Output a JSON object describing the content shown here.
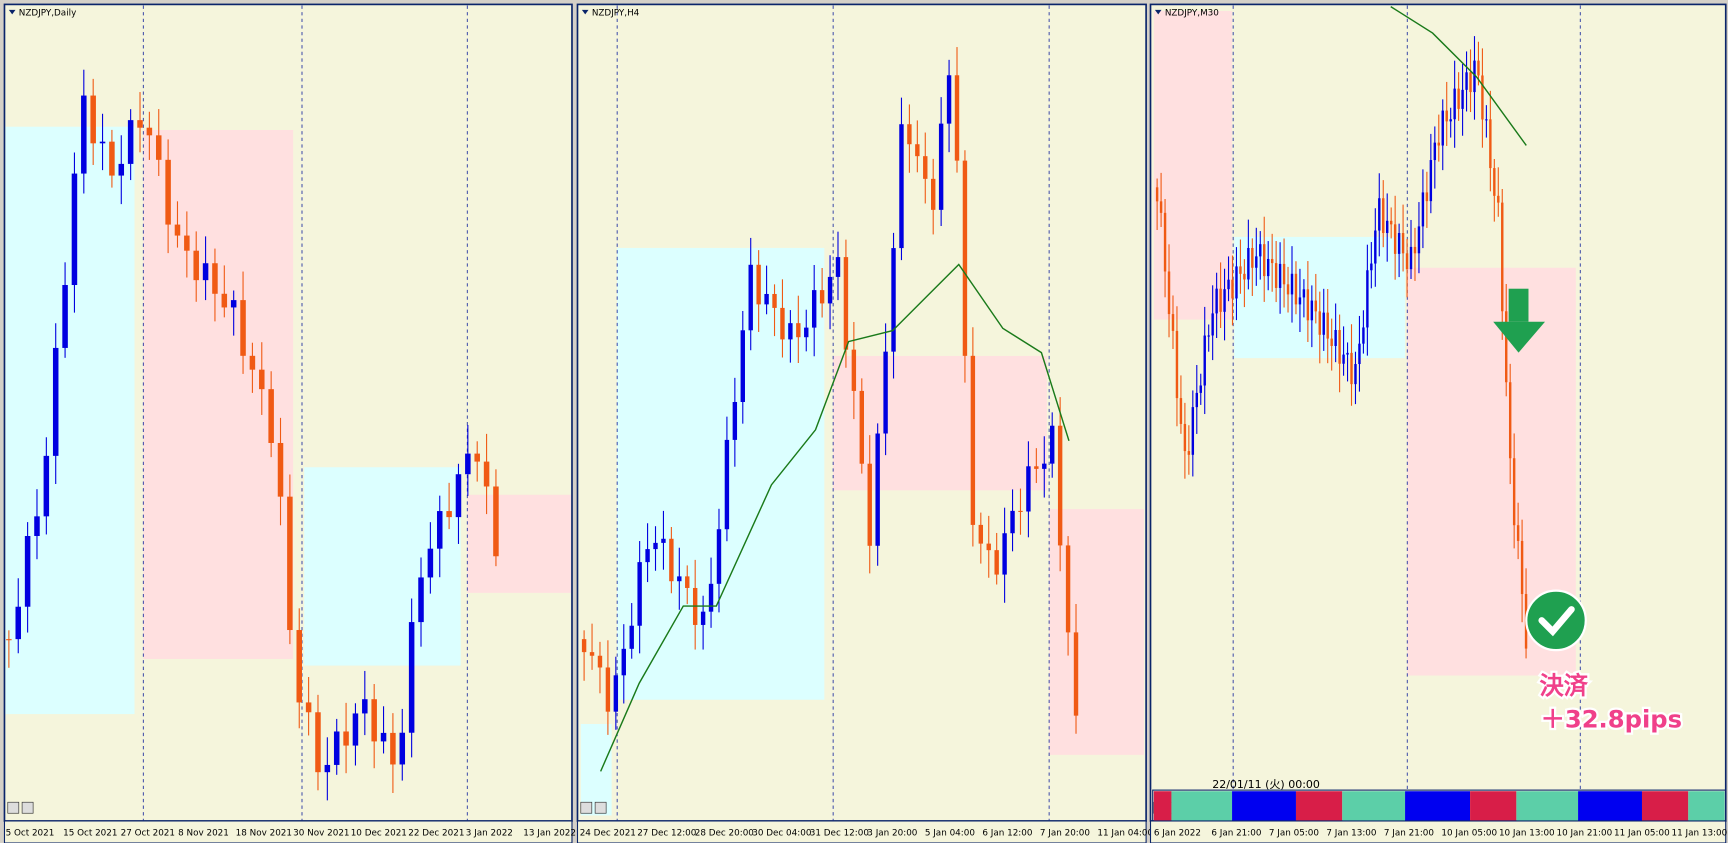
{
  "panels": [
    {
      "title": "NZDJPY,Daily",
      "dates": [
        "5 Oct 2021",
        "15 Oct 2021",
        "27 Oct 2021",
        "8 Nov 2021",
        "18 Nov 2021",
        "30 Nov 2021",
        "10 Dec 2021",
        "22 Dec 2021",
        "3 Jan 2022",
        "13 Jan 2022"
      ]
    },
    {
      "title": "NZDJPY,H4",
      "dates": [
        "24 Dec 2021",
        "27 Dec 12:00",
        "28 Dec 20:00",
        "30 Dec 04:00",
        "31 Dec 12:00",
        "3 Jan 20:00",
        "5 Jan 04:00",
        "6 Jan 12:00",
        "7 Jan 20:00",
        "11 Jan 04:00"
      ]
    },
    {
      "title": "NZDJPY,M30",
      "dates": [
        "6 Jan 2022",
        "6 Jan 21:00",
        "7 Jan 05:00",
        "7 Jan 13:00",
        "7 Jan 21:00",
        "10 Jan 05:00",
        "10 Jan 13:00",
        "10 Jan 21:00",
        "11 Jan 05:00",
        "11 Jan 13:00"
      ]
    }
  ],
  "indicator_time": "22/01/11 (火) 00:00",
  "annotation": {
    "line1": "決済",
    "line2": "＋32.8pips"
  }
}
